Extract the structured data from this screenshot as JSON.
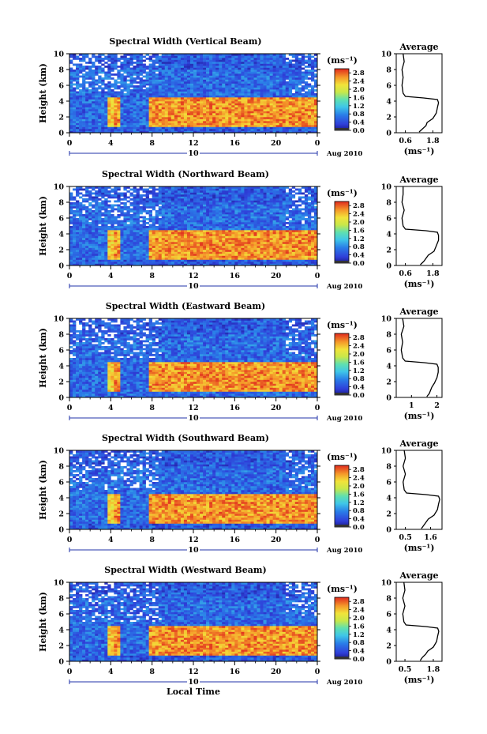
{
  "figure": {
    "xlabel_bottom": "Local Time",
    "date_label": "Aug 2010",
    "day_label": "10"
  },
  "chart_data": [
    {
      "type": "heatmap",
      "title": "Spectral Width (Vertical Beam)",
      "xlabel": "",
      "ylabel": "Height (km)",
      "xlim": [
        0,
        24
      ],
      "ylim": [
        0,
        10
      ],
      "xticks": [
        "0",
        "4",
        "8",
        "12",
        "16",
        "20",
        "0"
      ],
      "yticks": [
        "0",
        "2",
        "4",
        "6",
        "8",
        "10"
      ],
      "colorbar": {
        "unit": "(ms⁻¹)",
        "ticks": [
          "0.0",
          "0.4",
          "0.8",
          "1.2",
          "1.6",
          "2.0",
          "2.4",
          "2.8"
        ],
        "range": [
          0,
          3.0
        ]
      },
      "cells_note": "layers",
      "layers": [
        {
          "y_bottom": 0.0,
          "y_top": 0.8,
          "value": 0.5
        },
        {
          "y_bottom": 0.8,
          "y_top": 4.5,
          "value": 2.6
        },
        {
          "y_bottom": 4.5,
          "y_top": 8.0,
          "value": 0.6
        },
        {
          "y_bottom": 8.0,
          "y_top": 10.0,
          "value": 0.5
        }
      ],
      "average": {
        "title": "Average",
        "xlabel": "(ms⁻¹)",
        "xticks": [
          "0.6",
          "1.8"
        ],
        "xlim": [
          0.2,
          2.2
        ],
        "height": [
          0.1,
          0.5,
          0.9,
          1.3,
          1.8,
          2.5,
          3.2,
          3.8,
          4.2,
          4.4,
          4.6,
          5.0,
          6.0,
          7.0,
          8.0,
          9.0,
          10.0
        ],
        "value": [
          1.2,
          1.35,
          1.5,
          1.55,
          1.8,
          1.95,
          2.0,
          2.05,
          2.0,
          1.4,
          0.6,
          0.5,
          0.45,
          0.5,
          0.45,
          0.55,
          0.5
        ]
      }
    },
    {
      "type": "heatmap",
      "title": "Spectral Width (Northward Beam)",
      "xlabel": "",
      "ylabel": "Height (km)",
      "xlim": [
        0,
        24
      ],
      "ylim": [
        0,
        10
      ],
      "xticks": [
        "0",
        "4",
        "8",
        "12",
        "16",
        "20",
        "0"
      ],
      "yticks": [
        "0",
        "2",
        "4",
        "6",
        "8",
        "10"
      ],
      "colorbar": {
        "unit": "(ms⁻¹)",
        "ticks": [
          "0.0",
          "0.4",
          "0.8",
          "1.2",
          "1.6",
          "2.0",
          "2.4",
          "2.8"
        ],
        "range": [
          0,
          3.0
        ]
      },
      "layers": [
        {
          "y_bottom": 0.0,
          "y_top": 0.8,
          "value": 0.5
        },
        {
          "y_bottom": 0.8,
          "y_top": 4.5,
          "value": 2.6
        },
        {
          "y_bottom": 4.5,
          "y_top": 8.0,
          "value": 0.6
        },
        {
          "y_bottom": 8.0,
          "y_top": 10.0,
          "value": 0.5
        }
      ],
      "average": {
        "title": "Average",
        "xlabel": "(ms⁻¹)",
        "xticks": [
          "0.6",
          "1.8"
        ],
        "xlim": [
          0.2,
          2.2
        ],
        "height": [
          0.1,
          0.5,
          0.9,
          1.3,
          1.8,
          2.5,
          3.2,
          3.8,
          4.2,
          4.4,
          4.6,
          5.0,
          6.0,
          7.0,
          8.0,
          9.0,
          10.0
        ],
        "value": [
          1.25,
          1.4,
          1.5,
          1.6,
          1.85,
          1.95,
          2.05,
          2.05,
          2.0,
          1.5,
          0.6,
          0.5,
          0.45,
          0.55,
          0.45,
          0.5,
          0.5
        ]
      }
    },
    {
      "type": "heatmap",
      "title": "Spectral Width (Eastward Beam)",
      "xlabel": "",
      "ylabel": "Height (km)",
      "xlim": [
        0,
        24
      ],
      "ylim": [
        0,
        10
      ],
      "xticks": [
        "0",
        "4",
        "8",
        "12",
        "16",
        "20",
        "0"
      ],
      "yticks": [
        "0",
        "2",
        "4",
        "6",
        "8",
        "10"
      ],
      "colorbar": {
        "unit": "(ms⁻¹)",
        "ticks": [
          "0.0",
          "0.4",
          "0.8",
          "1.2",
          "1.6",
          "2.0",
          "2.4",
          "2.8"
        ],
        "range": [
          0,
          3.0
        ]
      },
      "layers": [
        {
          "y_bottom": 0.0,
          "y_top": 0.8,
          "value": 0.6
        },
        {
          "y_bottom": 0.8,
          "y_top": 4.5,
          "value": 2.6
        },
        {
          "y_bottom": 4.5,
          "y_top": 8.0,
          "value": 0.6
        },
        {
          "y_bottom": 8.0,
          "y_top": 10.0,
          "value": 0.5
        }
      ],
      "average": {
        "title": "Average",
        "xlabel": "(ms⁻¹)",
        "xticks": [
          "1",
          "2"
        ],
        "xlim": [
          0.4,
          2.2
        ],
        "height": [
          0.1,
          0.5,
          0.9,
          1.3,
          1.8,
          2.5,
          3.2,
          3.8,
          4.2,
          4.4,
          4.6,
          5.0,
          6.0,
          7.0,
          8.0,
          9.0,
          10.0
        ],
        "value": [
          1.6,
          1.7,
          1.75,
          1.8,
          1.9,
          2.0,
          2.05,
          2.05,
          2.0,
          1.5,
          0.75,
          0.65,
          0.6,
          0.65,
          0.6,
          0.7,
          0.65
        ]
      }
    },
    {
      "type": "heatmap",
      "title": "Spectral Width (Southward Beam)",
      "xlabel": "",
      "ylabel": "Height (km)",
      "xlim": [
        0,
        24
      ],
      "ylim": [
        0,
        10
      ],
      "xticks": [
        "0",
        "4",
        "8",
        "12",
        "16",
        "20",
        "0"
      ],
      "yticks": [
        "0",
        "2",
        "4",
        "6",
        "8",
        "10"
      ],
      "colorbar": {
        "unit": "(ms⁻¹)",
        "ticks": [
          "0.0",
          "0.4",
          "0.8",
          "1.2",
          "1.6",
          "2.0",
          "2.4",
          "2.8"
        ],
        "range": [
          0,
          3.0
        ]
      },
      "layers": [
        {
          "y_bottom": 0.0,
          "y_top": 0.8,
          "value": 0.5
        },
        {
          "y_bottom": 0.8,
          "y_top": 4.5,
          "value": 2.6
        },
        {
          "y_bottom": 4.5,
          "y_top": 8.0,
          "value": 0.6
        },
        {
          "y_bottom": 8.0,
          "y_top": 10.0,
          "value": 0.5
        }
      ],
      "average": {
        "title": "Average",
        "xlabel": "(ms⁻¹)",
        "xticks": [
          "0.5",
          "1.6"
        ],
        "xlim": [
          0.1,
          2.1
        ],
        "height": [
          0.1,
          0.5,
          0.9,
          1.3,
          1.8,
          2.5,
          3.2,
          3.8,
          4.2,
          4.4,
          4.6,
          5.0,
          6.0,
          7.0,
          8.0,
          9.0,
          10.0
        ],
        "value": [
          1.2,
          1.3,
          1.4,
          1.5,
          1.75,
          1.9,
          1.95,
          2.0,
          1.95,
          1.4,
          0.55,
          0.45,
          0.4,
          0.5,
          0.4,
          0.5,
          0.45
        ]
      }
    },
    {
      "type": "heatmap",
      "title": "Spectral Width (Westward Beam)",
      "xlabel": "",
      "ylabel": "Height (km)",
      "xlim": [
        0,
        24
      ],
      "ylim": [
        0,
        10
      ],
      "xticks": [
        "0",
        "4",
        "8",
        "12",
        "16",
        "20",
        "0"
      ],
      "yticks": [
        "0",
        "2",
        "4",
        "6",
        "8",
        "10"
      ],
      "colorbar": {
        "unit": "(ms⁻¹)",
        "ticks": [
          "0.0",
          "0.4",
          "0.8",
          "1.2",
          "1.6",
          "2.0",
          "2.4",
          "2.8"
        ],
        "range": [
          0,
          3.0
        ]
      },
      "layers": [
        {
          "y_bottom": 0.0,
          "y_top": 0.8,
          "value": 0.5
        },
        {
          "y_bottom": 0.8,
          "y_top": 4.5,
          "value": 2.6
        },
        {
          "y_bottom": 4.5,
          "y_top": 8.0,
          "value": 0.6
        },
        {
          "y_bottom": 8.0,
          "y_top": 10.0,
          "value": 0.5
        }
      ],
      "average": {
        "title": "Average",
        "xlabel": "(ms⁻¹)",
        "xticks": [
          "0.5",
          "1.8"
        ],
        "xlim": [
          0.1,
          2.2
        ],
        "height": [
          0.1,
          0.5,
          0.9,
          1.3,
          1.8,
          2.5,
          3.2,
          3.8,
          4.2,
          4.4,
          4.6,
          5.0,
          6.0,
          7.0,
          8.0,
          9.0,
          10.0
        ],
        "value": [
          1.2,
          1.3,
          1.45,
          1.55,
          1.8,
          1.95,
          2.0,
          2.05,
          2.0,
          1.45,
          0.55,
          0.45,
          0.4,
          0.5,
          0.4,
          0.5,
          0.45
        ]
      }
    }
  ]
}
